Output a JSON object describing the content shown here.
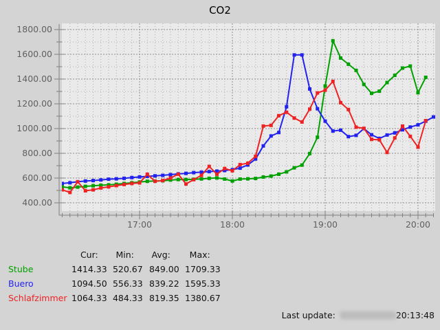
{
  "title": "CO2",
  "colors": {
    "background": "#d4d4d4",
    "plot_background": "#eaeaea",
    "grid_minor": "#aaaaaa",
    "grid_major": "#8f8f8f",
    "axis": "#808080",
    "axis_label": "#606060"
  },
  "chart_data": {
    "type": "line",
    "title": "CO2",
    "x_unit": "minutes since 16:00",
    "x_axis": {
      "major_ticks": [
        {
          "t": 60,
          "label": "17:00"
        },
        {
          "t": 120,
          "label": "18:00"
        },
        {
          "t": 180,
          "label": "19:00"
        },
        {
          "t": 240,
          "label": "20:00"
        }
      ],
      "minor_step_minutes": 5,
      "range_minutes": [
        10,
        251
      ]
    },
    "y_axis": {
      "major_ticks": [
        {
          "v": 400,
          "label": "400.00"
        },
        {
          "v": 600,
          "label": "600.00"
        },
        {
          "v": 800,
          "label": "800.00"
        },
        {
          "v": 1000,
          "label": "1000.00"
        },
        {
          "v": 1200,
          "label": "1200.00"
        },
        {
          "v": 1400,
          "label": "1400.00"
        },
        {
          "v": 1600,
          "label": "1600.00"
        },
        {
          "v": 1800,
          "label": "1800.00"
        }
      ],
      "minor_step": 100,
      "range": [
        333,
        1845
      ]
    },
    "grid": true,
    "legend_position": "bottom-left",
    "series": [
      {
        "id": "stube",
        "name": "Stube",
        "color": "#00a000",
        "points": [
          [
            10,
            529
          ],
          [
            15,
            521
          ],
          [
            20,
            527
          ],
          [
            25,
            533
          ],
          [
            30,
            538
          ],
          [
            35,
            542
          ],
          [
            40,
            545
          ],
          [
            45,
            550
          ],
          [
            50,
            556
          ],
          [
            55,
            562
          ],
          [
            60,
            568
          ],
          [
            65,
            574
          ],
          [
            70,
            576
          ],
          [
            75,
            578
          ],
          [
            80,
            584
          ],
          [
            85,
            588
          ],
          [
            90,
            588
          ],
          [
            95,
            590
          ],
          [
            100,
            593
          ],
          [
            105,
            598
          ],
          [
            110,
            601
          ],
          [
            115,
            592
          ],
          [
            120,
            576
          ],
          [
            125,
            592
          ],
          [
            130,
            594
          ],
          [
            135,
            597
          ],
          [
            140,
            608
          ],
          [
            145,
            616
          ],
          [
            150,
            631
          ],
          [
            155,
            650
          ],
          [
            160,
            683
          ],
          [
            165,
            705
          ],
          [
            170,
            798
          ],
          [
            175,
            930
          ],
          [
            180,
            1344
          ],
          [
            185,
            1709
          ],
          [
            190,
            1570
          ],
          [
            195,
            1520
          ],
          [
            200,
            1470
          ],
          [
            205,
            1357
          ],
          [
            210,
            1285
          ],
          [
            215,
            1302
          ],
          [
            220,
            1372
          ],
          [
            225,
            1430
          ],
          [
            230,
            1489
          ],
          [
            235,
            1505
          ],
          [
            240,
            1290
          ],
          [
            245,
            1414
          ]
        ]
      },
      {
        "id": "buero",
        "name": "Buero",
        "color": "#2222ee",
        "points": [
          [
            10,
            556
          ],
          [
            15,
            562
          ],
          [
            20,
            570
          ],
          [
            25,
            576
          ],
          [
            30,
            580
          ],
          [
            35,
            585
          ],
          [
            40,
            591
          ],
          [
            45,
            594
          ],
          [
            50,
            598
          ],
          [
            55,
            604
          ],
          [
            60,
            609
          ],
          [
            65,
            614
          ],
          [
            70,
            618
          ],
          [
            75,
            622
          ],
          [
            80,
            628
          ],
          [
            85,
            634
          ],
          [
            90,
            638
          ],
          [
            95,
            644
          ],
          [
            100,
            648
          ],
          [
            105,
            652
          ],
          [
            110,
            656
          ],
          [
            115,
            661
          ],
          [
            120,
            668
          ],
          [
            125,
            680
          ],
          [
            130,
            706
          ],
          [
            135,
            754
          ],
          [
            140,
            860
          ],
          [
            145,
            940
          ],
          [
            150,
            968
          ],
          [
            155,
            1176
          ],
          [
            160,
            1595
          ],
          [
            165,
            1595
          ],
          [
            170,
            1320
          ],
          [
            175,
            1160
          ],
          [
            180,
            1060
          ],
          [
            185,
            980
          ],
          [
            190,
            987
          ],
          [
            195,
            935
          ],
          [
            200,
            945
          ],
          [
            205,
            1000
          ],
          [
            210,
            950
          ],
          [
            215,
            920
          ],
          [
            220,
            948
          ],
          [
            225,
            965
          ],
          [
            230,
            990
          ],
          [
            235,
            1012
          ],
          [
            240,
            1030
          ],
          [
            245,
            1060
          ],
          [
            250,
            1094
          ]
        ]
      },
      {
        "id": "schlafzimmer",
        "name": "Schlafzimmer",
        "color": "#ee2222",
        "points": [
          [
            10,
            505
          ],
          [
            15,
            484
          ],
          [
            20,
            570
          ],
          [
            25,
            497
          ],
          [
            30,
            505
          ],
          [
            35,
            520
          ],
          [
            40,
            529
          ],
          [
            45,
            539
          ],
          [
            50,
            548
          ],
          [
            55,
            556
          ],
          [
            60,
            561
          ],
          [
            65,
            631
          ],
          [
            70,
            574
          ],
          [
            75,
            580
          ],
          [
            80,
            600
          ],
          [
            85,
            631
          ],
          [
            90,
            552
          ],
          [
            95,
            587
          ],
          [
            100,
            622
          ],
          [
            105,
            694
          ],
          [
            110,
            631
          ],
          [
            115,
            677
          ],
          [
            120,
            659
          ],
          [
            125,
            709
          ],
          [
            130,
            720
          ],
          [
            135,
            776
          ],
          [
            140,
            1020
          ],
          [
            145,
            1026
          ],
          [
            150,
            1104
          ],
          [
            155,
            1132
          ],
          [
            160,
            1085
          ],
          [
            165,
            1053
          ],
          [
            170,
            1157
          ],
          [
            175,
            1288
          ],
          [
            180,
            1310
          ],
          [
            185,
            1381
          ],
          [
            190,
            1209
          ],
          [
            195,
            1154
          ],
          [
            200,
            1011
          ],
          [
            205,
            1002
          ],
          [
            210,
            913
          ],
          [
            215,
            909
          ],
          [
            220,
            807
          ],
          [
            225,
            924
          ],
          [
            230,
            1020
          ],
          [
            235,
            937
          ],
          [
            240,
            850
          ],
          [
            245,
            1064
          ]
        ]
      }
    ]
  },
  "legend": {
    "columns": [
      "Cur:",
      "Min:",
      "Avg:",
      "Max:"
    ],
    "rows": [
      {
        "id": "stube",
        "name": "Stube",
        "color": "#00a000",
        "values": [
          "1414.33",
          "520.67",
          "849.00",
          "1709.33"
        ]
      },
      {
        "id": "buero",
        "name": "Buero",
        "color": "#2222ee",
        "values": [
          "1094.50",
          "556.33",
          "839.22",
          "1595.33"
        ]
      },
      {
        "id": "schlafzimmer",
        "name": "Schlafzimmer",
        "color": "#ee2222",
        "values": [
          "1064.33",
          "484.33",
          "819.35",
          "1380.67"
        ]
      }
    ]
  },
  "footer": {
    "label": "Last update:",
    "time": "20:13:48",
    "date_redacted": true
  }
}
